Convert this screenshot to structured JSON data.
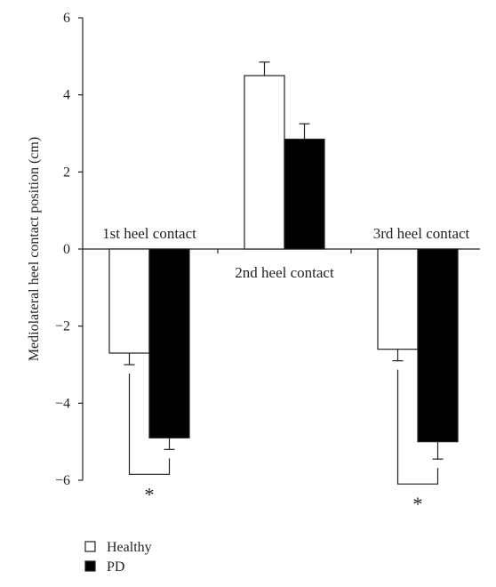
{
  "chart_data": {
    "type": "bar",
    "title": "",
    "xlabel": "",
    "ylabel": "Mediolateral heel contact position (cm)",
    "ylim": [
      -6,
      6
    ],
    "yticks": [
      6,
      4,
      2,
      0,
      -2,
      -4,
      -6
    ],
    "ytick_labels": [
      "6",
      "4",
      "2",
      "0",
      "−2",
      "−4",
      "−6"
    ],
    "categories": [
      "1st heel contact",
      "2nd heel contact",
      "3rd heel contact"
    ],
    "series": [
      {
        "name": "Healthy",
        "color": "#ffffff",
        "values": [
          -2.7,
          4.5,
          -2.6
        ],
        "errors": [
          0.3,
          0.35,
          0.3
        ]
      },
      {
        "name": "PD",
        "color": "#000000",
        "values": [
          -4.9,
          2.85,
          -5.0
        ],
        "errors": [
          0.3,
          0.4,
          0.45
        ]
      }
    ],
    "significance": [
      {
        "category": "1st heel contact",
        "label": "*"
      },
      {
        "category": "3rd heel contact",
        "label": "*"
      }
    ],
    "grid": false,
    "legend_position": "bottom-left"
  }
}
